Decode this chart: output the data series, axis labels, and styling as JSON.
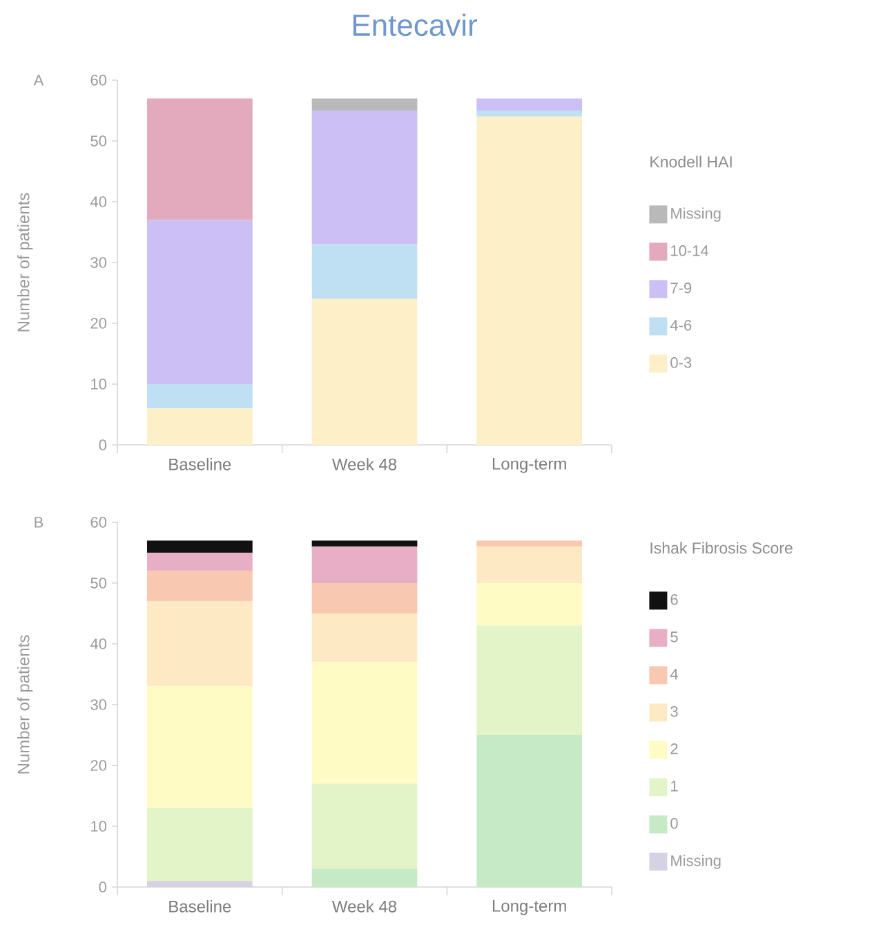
{
  "chart_data": [
    {
      "type": "bar",
      "stacked": true,
      "title": "Entecavir",
      "annotations": [
        "A"
      ],
      "ylabel": "Number of patients",
      "categories": [
        "Baseline",
        "Week 48",
        "Long-term"
      ],
      "series": [
        {
          "name": "0-3",
          "color": "#fdf0c8",
          "values": [
            6,
            24,
            54
          ]
        },
        {
          "name": "4-6",
          "color": "#bfe0f2",
          "values": [
            4,
            9,
            1
          ]
        },
        {
          "name": "7-9",
          "color": "#cbbff5",
          "values": [
            27,
            22,
            2
          ]
        },
        {
          "name": "10-14",
          "color": "#e3a9bd",
          "values": [
            20,
            0,
            0
          ]
        },
        {
          "name": "Missing",
          "color": "#b9b9b9",
          "values": [
            0,
            2,
            0
          ]
        }
      ],
      "ylim": [
        0,
        60
      ],
      "yticks": [
        0,
        10,
        20,
        30,
        40,
        50,
        60
      ],
      "legend": "right",
      "legend_title": "Knodell HAI"
    },
    {
      "type": "bar",
      "stacked": true,
      "annotations": [
        "B"
      ],
      "ylabel": "Number of patients",
      "categories": [
        "Baseline",
        "Week 48",
        "Long-term"
      ],
      "series": [
        {
          "name": "Missing",
          "color": "#d6d2e4",
          "values": [
            1,
            0,
            0
          ]
        },
        {
          "name": "0",
          "color": "#c6eac5",
          "values": [
            0,
            3,
            25
          ]
        },
        {
          "name": "1",
          "color": "#e3f4c9",
          "values": [
            12,
            14,
            18
          ]
        },
        {
          "name": "2",
          "color": "#fefcc4",
          "values": [
            20,
            20,
            7
          ]
        },
        {
          "name": "3",
          "color": "#fde9c4",
          "values": [
            14,
            8,
            6
          ]
        },
        {
          "name": "4",
          "color": "#f8c9b0",
          "values": [
            5,
            5,
            1
          ]
        },
        {
          "name": "5",
          "color": "#e8aec6",
          "values": [
            3,
            6,
            0
          ]
        },
        {
          "name": "6",
          "color": "#111111",
          "values": [
            2,
            1,
            0
          ]
        }
      ],
      "ylim": [
        0,
        60
      ],
      "yticks": [
        0,
        10,
        20,
        30,
        40,
        50,
        60
      ],
      "legend": "right",
      "legend_title": "Ishak Fibrosis Score"
    }
  ]
}
